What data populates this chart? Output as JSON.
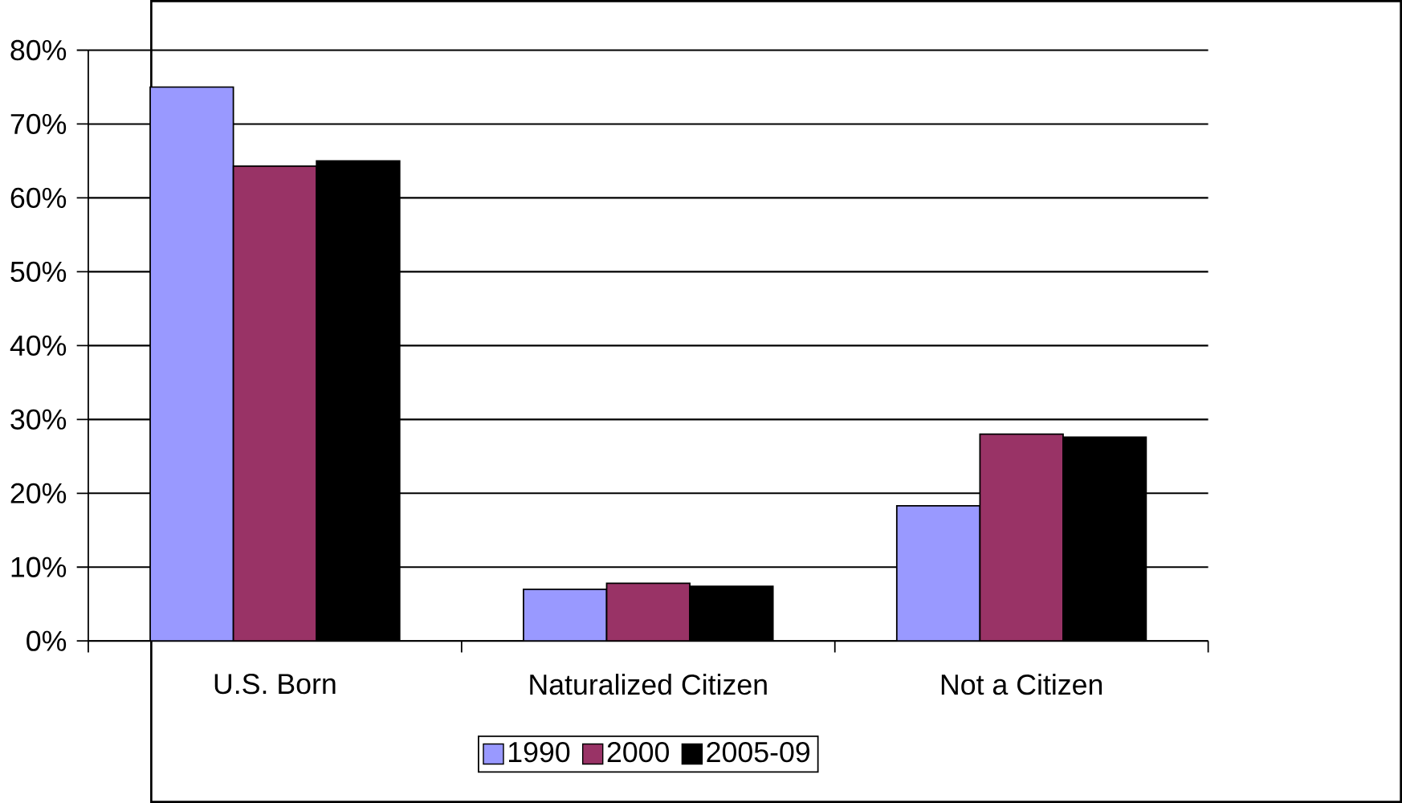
{
  "chart_data": {
    "type": "bar",
    "categories": [
      "U.S. Born",
      "Naturalized Citizen",
      "Not a Citizen"
    ],
    "series": [
      {
        "name": "1990",
        "color": "#9999ff",
        "values": [
          75,
          7,
          18.3
        ]
      },
      {
        "name": "2000",
        "color": "#993366",
        "values": [
          64.3,
          7.8,
          28
        ]
      },
      {
        "name": "2005-09",
        "color": "#000000",
        "values": [
          65,
          7.4,
          27.6
        ]
      }
    ],
    "ylim": [
      0,
      80
    ],
    "yticks": [
      {
        "value": 0,
        "label": "0%"
      },
      {
        "value": 10,
        "label": "10%"
      },
      {
        "value": 20,
        "label": "20%"
      },
      {
        "value": 30,
        "label": "30%"
      },
      {
        "value": 40,
        "label": "40%"
      },
      {
        "value": 50,
        "label": "50%"
      },
      {
        "value": 60,
        "label": "60%"
      },
      {
        "value": 70,
        "label": "70%"
      },
      {
        "value": 80,
        "label": "80%"
      }
    ],
    "grid": "y",
    "legend": "bottom"
  }
}
